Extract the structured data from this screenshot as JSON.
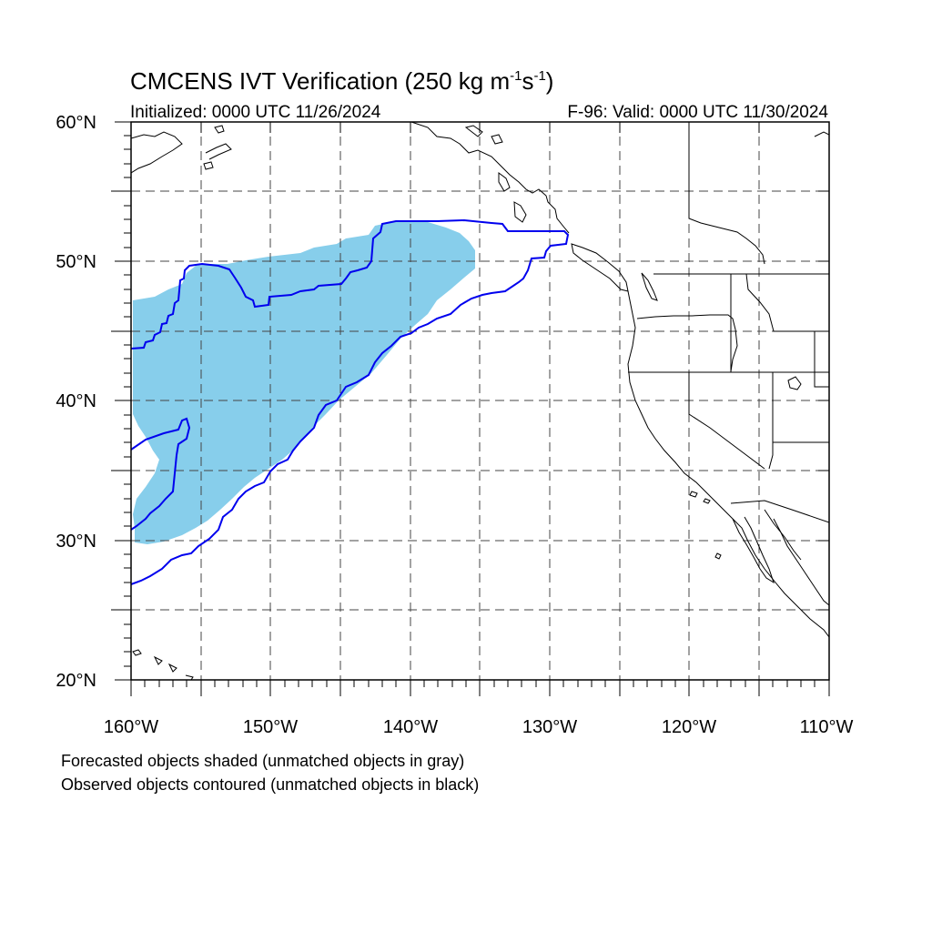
{
  "title": {
    "main": "CMCENS IVT Verification (250 kg m",
    "sup1": "-1",
    "mid": "s",
    "sup2": "-1",
    "close": ")"
  },
  "initialized": "Initialized: 0000 UTC 11/26/2024",
  "valid": "F-96: Valid: 0000 UTC 11/30/2024",
  "lat_labels": [
    "60°N",
    "50°N",
    "40°N",
    "30°N",
    "20°N"
  ],
  "lon_labels": [
    "160°W",
    "150°W",
    "140°W",
    "130°W",
    "120°W",
    "110°W"
  ],
  "extent": {
    "lon_min": -160,
    "lon_max": -110,
    "lat_min": 20,
    "lat_max": 60
  },
  "notes": [
    "Forecasted objects shaded (unmatched objects in gray)",
    "Observed objects contoured (unmatched objects in black)"
  ],
  "colors": {
    "forecast_fill": "#87ceeb",
    "observed_contour": "#0000ee",
    "grid": "#444444",
    "coast": "#000000"
  }
}
